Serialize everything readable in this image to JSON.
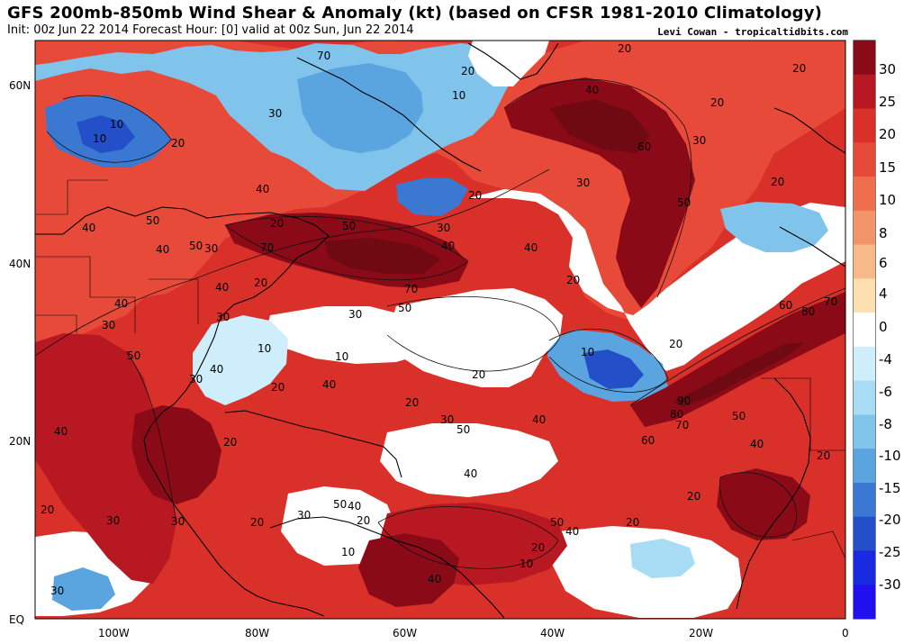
{
  "header": {
    "title": "GFS 200mb-850mb Wind Shear & Anomaly (kt) (based on CFSR 1981-2010 Climatology)",
    "subtitle": "Init: 00z Jun 22 2014 Forecast Hour: [0] valid at 00z Sun, Jun 22 2014",
    "credit": "Levi Cowan - tropicaltidbits.com"
  },
  "axes": {
    "lat_ticks": [
      "60N",
      "40N",
      "20N",
      "EQ"
    ],
    "lon_ticks": [
      "100W",
      "80W",
      "60W",
      "40W",
      "20W",
      "0"
    ]
  },
  "colorbar": {
    "labels": [
      "30",
      "25",
      "20",
      "15",
      "10",
      "8",
      "6",
      "4",
      "0",
      "-4",
      "-6",
      "-8",
      "-10",
      "-15",
      "-20",
      "-25",
      "-30"
    ],
    "colors": [
      "#8b0a18",
      "#b81822",
      "#d9302a",
      "#e84a3a",
      "#ef6e4e",
      "#f3936a",
      "#f8b888",
      "#fde0b0",
      "#ffffff",
      "#cfeefb",
      "#a8dcf5",
      "#80c4ec",
      "#5aa4e0",
      "#3a78d2",
      "#2350c8",
      "#1a2ae0",
      "#2010f0"
    ]
  },
  "contour_labels": [
    {
      "text": "20"
    },
    {
      "text": "70"
    },
    {
      "text": "20"
    },
    {
      "text": "10"
    },
    {
      "text": "20"
    },
    {
      "text": "40"
    },
    {
      "text": "20"
    },
    {
      "text": "10"
    },
    {
      "text": "30"
    },
    {
      "text": "10"
    },
    {
      "text": "20"
    },
    {
      "text": "60"
    },
    {
      "text": "30"
    },
    {
      "text": "30"
    },
    {
      "text": "50"
    },
    {
      "text": "40"
    },
    {
      "text": "20"
    },
    {
      "text": "40"
    },
    {
      "text": "50"
    },
    {
      "text": "20"
    },
    {
      "text": "40"
    },
    {
      "text": "50"
    },
    {
      "text": "30"
    },
    {
      "text": "70"
    },
    {
      "text": "40"
    },
    {
      "text": "30"
    },
    {
      "text": "20"
    },
    {
      "text": "40"
    },
    {
      "text": "50"
    },
    {
      "text": "70"
    },
    {
      "text": "50"
    },
    {
      "text": "20"
    },
    {
      "text": "20"
    },
    {
      "text": "40"
    },
    {
      "text": "40"
    },
    {
      "text": "30"
    },
    {
      "text": "60"
    },
    {
      "text": "80"
    },
    {
      "text": "70"
    },
    {
      "text": "30"
    },
    {
      "text": "10"
    },
    {
      "text": "50"
    },
    {
      "text": "30"
    },
    {
      "text": "20"
    },
    {
      "text": "10"
    },
    {
      "text": "10"
    },
    {
      "text": "40"
    },
    {
      "text": "30"
    },
    {
      "text": "20"
    },
    {
      "text": "90"
    },
    {
      "text": "80"
    },
    {
      "text": "70"
    },
    {
      "text": "20"
    },
    {
      "text": "30"
    },
    {
      "text": "40"
    },
    {
      "text": "50"
    },
    {
      "text": "40"
    },
    {
      "text": "20"
    },
    {
      "text": "60"
    },
    {
      "text": "50"
    },
    {
      "text": "40"
    },
    {
      "text": "40"
    },
    {
      "text": "20"
    },
    {
      "text": "50"
    },
    {
      "text": "40"
    },
    {
      "text": "30"
    },
    {
      "text": "20"
    },
    {
      "text": "10"
    },
    {
      "text": "50"
    },
    {
      "text": "40"
    },
    {
      "text": "20"
    },
    {
      "text": "10"
    },
    {
      "text": "40"
    },
    {
      "text": "20"
    },
    {
      "text": "20"
    },
    {
      "text": "20"
    },
    {
      "text": "30"
    },
    {
      "text": "20"
    },
    {
      "text": "30"
    },
    {
      "text": "30"
    },
    {
      "text": "40"
    },
    {
      "text": "20"
    }
  ]
}
